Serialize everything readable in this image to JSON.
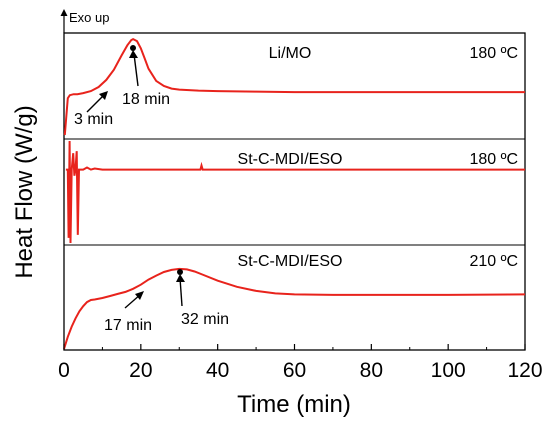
{
  "chart_data": {
    "type": "line",
    "xlabel": "Time (min)",
    "ylabel": "Heat Flow (W/g)",
    "xlim": [
      0,
      120
    ],
    "xticks": [
      "0",
      "20",
      "40",
      "60",
      "80",
      "100",
      "120"
    ],
    "grid": false,
    "exo_label": "Exo up",
    "panels": [
      {
        "sample": "Li/MO",
        "temperature": "180 ºC",
        "color": "#e8231c",
        "points": [
          [
            0.2,
            0.02
          ],
          [
            0.6,
            0.2
          ],
          [
            1.0,
            0.38
          ],
          [
            1.5,
            0.41
          ],
          [
            2.5,
            0.42
          ],
          [
            3.5,
            0.42
          ],
          [
            5,
            0.43
          ],
          [
            7,
            0.45
          ],
          [
            9,
            0.49
          ],
          [
            11,
            0.56
          ],
          [
            13,
            0.66
          ],
          [
            15,
            0.8
          ],
          [
            16.5,
            0.9
          ],
          [
            17.5,
            0.95
          ],
          [
            18,
            0.96
          ],
          [
            19,
            0.94
          ],
          [
            20,
            0.87
          ],
          [
            21,
            0.77
          ],
          [
            22,
            0.67
          ],
          [
            24,
            0.55
          ],
          [
            26,
            0.5
          ],
          [
            28,
            0.475
          ],
          [
            30,
            0.465
          ],
          [
            35,
            0.455
          ],
          [
            40,
            0.45
          ],
          [
            50,
            0.445
          ],
          [
            60,
            0.44
          ],
          [
            80,
            0.44
          ],
          [
            100,
            0.44
          ],
          [
            120,
            0.44
          ]
        ],
        "annotations": [
          {
            "text": "3 min",
            "x": 3
          },
          {
            "text": "18 min",
            "x": 18
          }
        ]
      },
      {
        "sample": "St-C-MDI/ESO",
        "temperature": "180 ºC",
        "color": "#e8231c",
        "points": [
          [
            0.5,
            0.72
          ],
          [
            1.0,
            0.72
          ],
          [
            1.2,
            0.05
          ],
          [
            1.45,
            1.0
          ],
          [
            1.7,
            0.0
          ],
          [
            2.0,
            0.72
          ],
          [
            2.4,
            0.88
          ],
          [
            2.7,
            0.66
          ],
          [
            3.0,
            0.72
          ],
          [
            3.3,
            0.9
          ],
          [
            3.6,
            0.08
          ],
          [
            3.9,
            0.72
          ],
          [
            5,
            0.72
          ],
          [
            6,
            0.74
          ],
          [
            7,
            0.72
          ],
          [
            8,
            0.73
          ],
          [
            10,
            0.72
          ],
          [
            20,
            0.72
          ],
          [
            30,
            0.72
          ],
          [
            35.5,
            0.72
          ],
          [
            35.8,
            0.76
          ],
          [
            36.1,
            0.72
          ],
          [
            40,
            0.72
          ],
          [
            60,
            0.72
          ],
          [
            80,
            0.72
          ],
          [
            100,
            0.72
          ],
          [
            120,
            0.72
          ]
        ],
        "annotations": []
      },
      {
        "sample": "St-C-MDI/ESO",
        "temperature": "210 ºC",
        "color": "#e8231c",
        "points": [
          [
            0,
            0.0
          ],
          [
            1,
            0.12
          ],
          [
            2,
            0.22
          ],
          [
            3,
            0.3
          ],
          [
            4,
            0.37
          ],
          [
            5,
            0.42
          ],
          [
            6,
            0.46
          ],
          [
            7,
            0.48
          ],
          [
            8,
            0.485
          ],
          [
            10,
            0.5
          ],
          [
            12,
            0.52
          ],
          [
            14,
            0.54
          ],
          [
            16,
            0.56
          ],
          [
            18,
            0.59
          ],
          [
            20,
            0.63
          ],
          [
            22,
            0.68
          ],
          [
            24,
            0.72
          ],
          [
            26,
            0.755
          ],
          [
            28,
            0.775
          ],
          [
            30,
            0.785
          ],
          [
            32,
            0.78
          ],
          [
            34,
            0.76
          ],
          [
            36,
            0.73
          ],
          [
            40,
            0.67
          ],
          [
            45,
            0.61
          ],
          [
            50,
            0.57
          ],
          [
            55,
            0.545
          ],
          [
            60,
            0.535
          ],
          [
            70,
            0.53
          ],
          [
            80,
            0.53
          ],
          [
            100,
            0.53
          ],
          [
            120,
            0.535
          ]
        ],
        "annotations": [
          {
            "text": "17 min",
            "x": 17
          },
          {
            "text": "32 min",
            "x": 32
          }
        ]
      }
    ]
  }
}
